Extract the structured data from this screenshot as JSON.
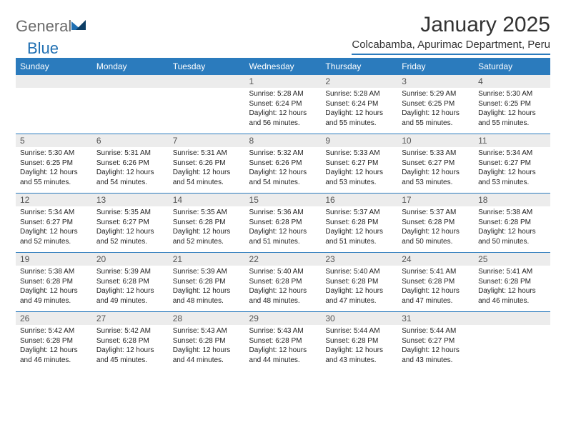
{
  "logo": {
    "text1": "General",
    "text2": "Blue"
  },
  "title": "January 2025",
  "subtitle": "Colcabamba, Apurimac Department, Peru",
  "colors": {
    "header_bg": "#2b7bbd",
    "header_text": "#ffffff",
    "daynum_bg": "#ececec",
    "border": "#2b7bbd",
    "title_color": "#333333",
    "logo_gray": "#6b6b6b",
    "logo_blue": "#1f6fb2"
  },
  "dayHeaders": [
    "Sunday",
    "Monday",
    "Tuesday",
    "Wednesday",
    "Thursday",
    "Friday",
    "Saturday"
  ],
  "weeks": [
    [
      {},
      {},
      {},
      {
        "num": "1",
        "sunrise": "5:28 AM",
        "sunset": "6:24 PM",
        "daylight": "12 hours and 56 minutes."
      },
      {
        "num": "2",
        "sunrise": "5:28 AM",
        "sunset": "6:24 PM",
        "daylight": "12 hours and 55 minutes."
      },
      {
        "num": "3",
        "sunrise": "5:29 AM",
        "sunset": "6:25 PM",
        "daylight": "12 hours and 55 minutes."
      },
      {
        "num": "4",
        "sunrise": "5:30 AM",
        "sunset": "6:25 PM",
        "daylight": "12 hours and 55 minutes."
      }
    ],
    [
      {
        "num": "5",
        "sunrise": "5:30 AM",
        "sunset": "6:25 PM",
        "daylight": "12 hours and 55 minutes."
      },
      {
        "num": "6",
        "sunrise": "5:31 AM",
        "sunset": "6:26 PM",
        "daylight": "12 hours and 54 minutes."
      },
      {
        "num": "7",
        "sunrise": "5:31 AM",
        "sunset": "6:26 PM",
        "daylight": "12 hours and 54 minutes."
      },
      {
        "num": "8",
        "sunrise": "5:32 AM",
        "sunset": "6:26 PM",
        "daylight": "12 hours and 54 minutes."
      },
      {
        "num": "9",
        "sunrise": "5:33 AM",
        "sunset": "6:27 PM",
        "daylight": "12 hours and 53 minutes."
      },
      {
        "num": "10",
        "sunrise": "5:33 AM",
        "sunset": "6:27 PM",
        "daylight": "12 hours and 53 minutes."
      },
      {
        "num": "11",
        "sunrise": "5:34 AM",
        "sunset": "6:27 PM",
        "daylight": "12 hours and 53 minutes."
      }
    ],
    [
      {
        "num": "12",
        "sunrise": "5:34 AM",
        "sunset": "6:27 PM",
        "daylight": "12 hours and 52 minutes."
      },
      {
        "num": "13",
        "sunrise": "5:35 AM",
        "sunset": "6:27 PM",
        "daylight": "12 hours and 52 minutes."
      },
      {
        "num": "14",
        "sunrise": "5:35 AM",
        "sunset": "6:28 PM",
        "daylight": "12 hours and 52 minutes."
      },
      {
        "num": "15",
        "sunrise": "5:36 AM",
        "sunset": "6:28 PM",
        "daylight": "12 hours and 51 minutes."
      },
      {
        "num": "16",
        "sunrise": "5:37 AM",
        "sunset": "6:28 PM",
        "daylight": "12 hours and 51 minutes."
      },
      {
        "num": "17",
        "sunrise": "5:37 AM",
        "sunset": "6:28 PM",
        "daylight": "12 hours and 50 minutes."
      },
      {
        "num": "18",
        "sunrise": "5:38 AM",
        "sunset": "6:28 PM",
        "daylight": "12 hours and 50 minutes."
      }
    ],
    [
      {
        "num": "19",
        "sunrise": "5:38 AM",
        "sunset": "6:28 PM",
        "daylight": "12 hours and 49 minutes."
      },
      {
        "num": "20",
        "sunrise": "5:39 AM",
        "sunset": "6:28 PM",
        "daylight": "12 hours and 49 minutes."
      },
      {
        "num": "21",
        "sunrise": "5:39 AM",
        "sunset": "6:28 PM",
        "daylight": "12 hours and 48 minutes."
      },
      {
        "num": "22",
        "sunrise": "5:40 AM",
        "sunset": "6:28 PM",
        "daylight": "12 hours and 48 minutes."
      },
      {
        "num": "23",
        "sunrise": "5:40 AM",
        "sunset": "6:28 PM",
        "daylight": "12 hours and 47 minutes."
      },
      {
        "num": "24",
        "sunrise": "5:41 AM",
        "sunset": "6:28 PM",
        "daylight": "12 hours and 47 minutes."
      },
      {
        "num": "25",
        "sunrise": "5:41 AM",
        "sunset": "6:28 PM",
        "daylight": "12 hours and 46 minutes."
      }
    ],
    [
      {
        "num": "26",
        "sunrise": "5:42 AM",
        "sunset": "6:28 PM",
        "daylight": "12 hours and 46 minutes."
      },
      {
        "num": "27",
        "sunrise": "5:42 AM",
        "sunset": "6:28 PM",
        "daylight": "12 hours and 45 minutes."
      },
      {
        "num": "28",
        "sunrise": "5:43 AM",
        "sunset": "6:28 PM",
        "daylight": "12 hours and 44 minutes."
      },
      {
        "num": "29",
        "sunrise": "5:43 AM",
        "sunset": "6:28 PM",
        "daylight": "12 hours and 44 minutes."
      },
      {
        "num": "30",
        "sunrise": "5:44 AM",
        "sunset": "6:28 PM",
        "daylight": "12 hours and 43 minutes."
      },
      {
        "num": "31",
        "sunrise": "5:44 AM",
        "sunset": "6:27 PM",
        "daylight": "12 hours and 43 minutes."
      },
      {}
    ]
  ],
  "labels": {
    "sunrise": "Sunrise: ",
    "sunset": "Sunset: ",
    "daylight": "Daylight: "
  }
}
